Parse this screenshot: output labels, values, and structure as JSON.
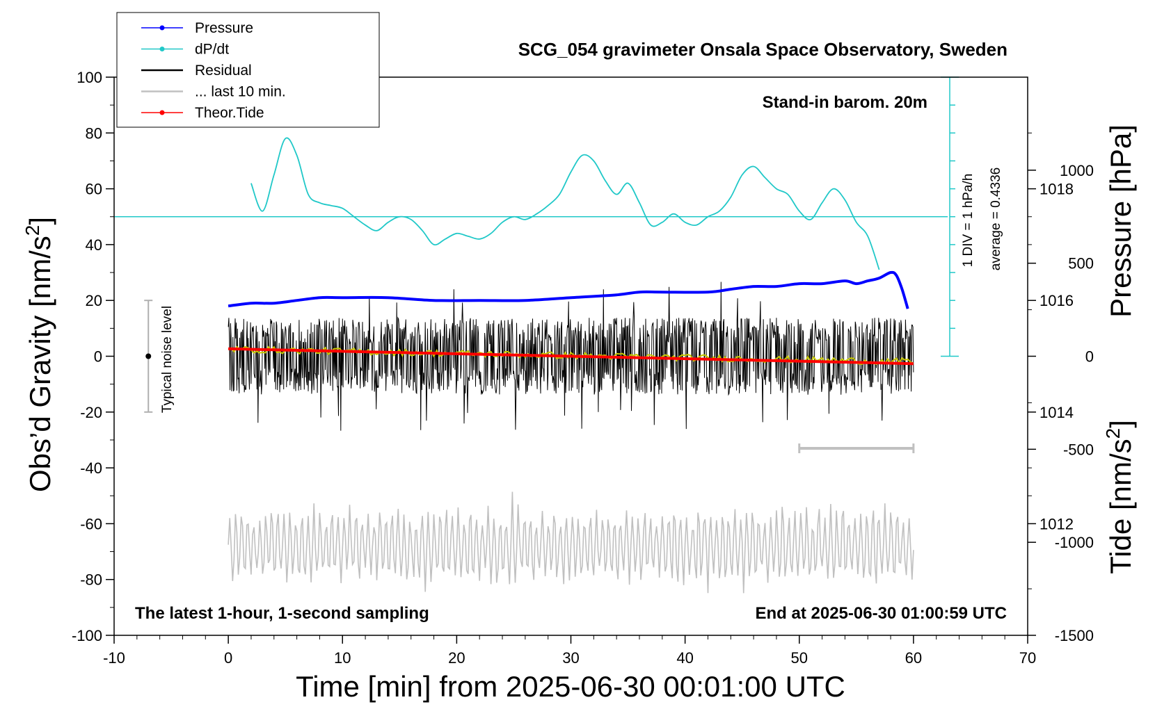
{
  "chart_data": {
    "type": "line",
    "title": "SCG_054 gravimeter Onsala Space Observatory, Sweden",
    "xlabel": "Time [min] from 2025-06-30 00:01:00 UTC",
    "ylabel_left": "Obs’d Gravity [nm/s2]",
    "ylabel_right_pressure": "Pressure [hPa]",
    "ylabel_right_tide": "Tide [nm/s2]",
    "xlim": [
      -10,
      70
    ],
    "ylim_left": [
      -100,
      100
    ],
    "ylim_pressure": [
      1010,
      1020
    ],
    "ylim_tide": [
      -1500,
      1500
    ],
    "grid": false,
    "legend_position": "top-left",
    "x_ticks": [
      "-10",
      "0",
      "10",
      "20",
      "30",
      "40",
      "50",
      "60",
      "70"
    ],
    "y_ticks_left": [
      "100",
      "80",
      "60",
      "40",
      "20",
      "0",
      "-20",
      "-40",
      "-60",
      "-80",
      "-100"
    ],
    "y_ticks_pressure": [
      "1018",
      "1016",
      "1014",
      "1012"
    ],
    "y_ticks_tide": [
      "1000",
      "500",
      "0",
      "-500",
      "-1000",
      "-1500"
    ],
    "annotations": {
      "top_right": "Stand-in barom. 20m",
      "bottom_left": "The latest 1-hour, 1-second sampling",
      "bottom_right": "End at 2025-06-30 01:00:59 UTC",
      "noise_label": "Typical noise level",
      "div_note": "1 DIV = 1 hPa/h",
      "average_note": "average = 0.4336"
    },
    "legend": [
      {
        "label": "Pressure",
        "color": "#0000ff",
        "marker": true
      },
      {
        "label": "dP/dt",
        "color": "#20c8c8",
        "marker": true
      },
      {
        "label": "Residual",
        "color": "#000000",
        "marker": false
      },
      {
        "label": "... last 10 min.",
        "color": "#c0c0c0",
        "marker": false
      },
      {
        "label": "Theor.Tide",
        "color": "#ff0000",
        "marker": true
      }
    ],
    "series": [
      {
        "name": "Pressure",
        "color": "#0000ff",
        "axis": "pressure",
        "x": [
          0,
          2,
          4,
          6,
          8,
          10,
          14,
          18,
          22,
          26,
          30,
          34,
          36,
          38,
          42,
          44,
          46,
          48,
          50,
          52,
          54,
          55,
          56,
          57,
          58,
          58.5,
          59,
          59.5
        ],
        "y": [
          1015.9,
          1015.95,
          1015.95,
          1016.0,
          1016.05,
          1016.05,
          1016.05,
          1016.0,
          1016.0,
          1016.0,
          1016.05,
          1016.1,
          1016.15,
          1016.15,
          1016.15,
          1016.2,
          1016.25,
          1016.25,
          1016.3,
          1016.3,
          1016.35,
          1016.3,
          1016.35,
          1016.4,
          1016.5,
          1016.45,
          1016.2,
          1015.85
        ]
      },
      {
        "name": "dP/dt",
        "color": "#20c8c8",
        "axis": "left",
        "x": [
          2,
          3,
          4,
          5,
          6,
          7,
          8,
          9,
          10,
          11,
          12,
          13,
          14,
          15,
          16,
          17,
          18,
          19,
          20,
          21,
          22,
          23,
          24,
          25,
          26,
          27,
          28,
          29,
          30,
          31,
          32,
          33,
          34,
          35,
          36,
          37,
          38,
          39,
          40,
          41,
          42,
          43,
          44,
          45,
          46,
          47,
          48,
          49,
          50,
          51,
          52,
          53,
          54,
          55,
          56,
          57
        ],
        "y": [
          62,
          52,
          65,
          78,
          72,
          58,
          55,
          54,
          53,
          50,
          47,
          45,
          48,
          50,
          49,
          45,
          40,
          42,
          44,
          43,
          42,
          44,
          48,
          50,
          49,
          51,
          54,
          58,
          66,
          72,
          70,
          63,
          58,
          62,
          55,
          47,
          48,
          51,
          48,
          47,
          50,
          52,
          57,
          65,
          68,
          64,
          60,
          58,
          52,
          49,
          55,
          60,
          56,
          48,
          43,
          31
        ]
      },
      {
        "name": "Theor.Tide",
        "color": "#ff0000",
        "axis": "tide",
        "x": [
          0,
          60
        ],
        "y": [
          40,
          -40
        ]
      }
    ],
    "noise_bands": [
      {
        "name": "Residual",
        "color": "#000000",
        "x_range": [
          0,
          60
        ],
        "center": 0,
        "amplitude": 12,
        "peak_amplitude": 27
      },
      {
        "name": "... last 10 min.",
        "color": "#c0c0c0",
        "x_range": [
          0,
          60
        ],
        "center": -68,
        "amplitude": 12,
        "peak_amplitude": 18
      },
      {
        "name": "smoothed residual",
        "color": "#c8c800",
        "x_range": [
          0,
          60
        ],
        "start": 2.5,
        "end": -2
      }
    ],
    "reference_lines": [
      {
        "name": "dP/dt zero",
        "axis": "left",
        "y": 50,
        "x_range": [
          -10,
          63
        ]
      }
    ],
    "noise_marker": {
      "x": -7,
      "y": 0,
      "range": [
        -20,
        20
      ]
    },
    "last10_bar": {
      "x_range": [
        50,
        60
      ],
      "y": -33
    }
  }
}
